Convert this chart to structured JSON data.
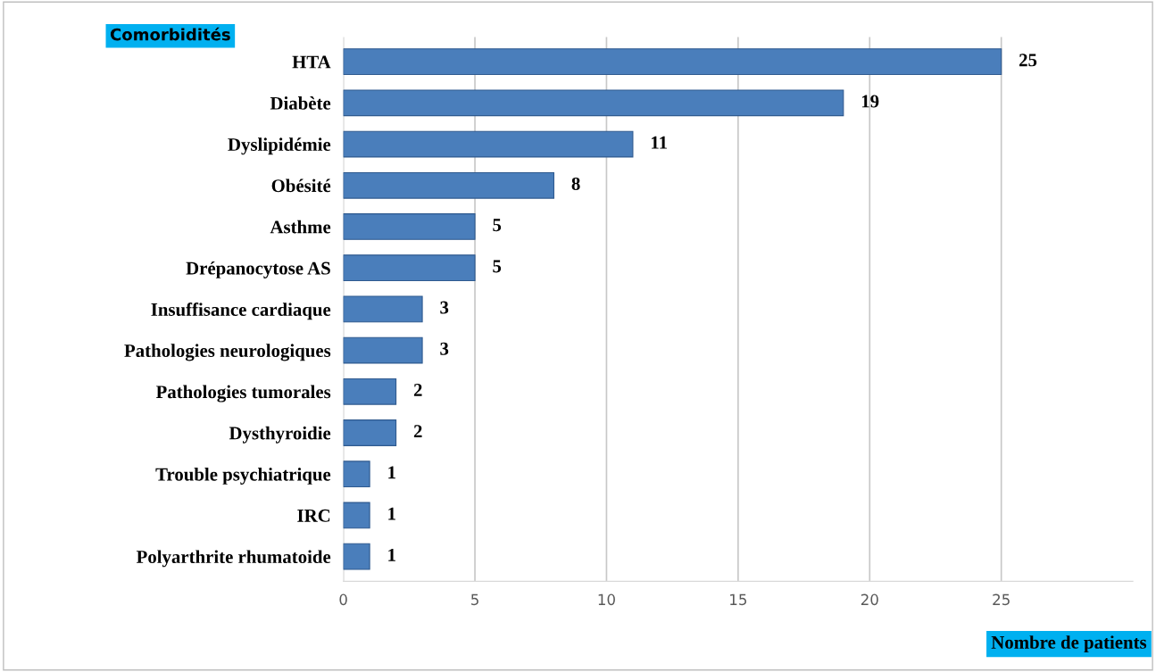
{
  "chart_data": {
    "type": "bar",
    "orientation": "horizontal",
    "ylabel": "Comorbidités",
    "xlabel": "Nombre de patients",
    "categories": [
      "HTA",
      "Diabète",
      "Dyslipidémie",
      "Obésité",
      "Asthme",
      "Drépanocytose AS",
      "Insuffisance cardiaque",
      "Pathologies neurologiques",
      "Pathologies tumorales",
      "Dysthyroidie",
      "Trouble psychiatrique",
      "IRC",
      "Polyarthrite rhumatoide"
    ],
    "values": [
      25,
      19,
      11,
      8,
      5,
      5,
      3,
      3,
      2,
      2,
      1,
      1,
      1
    ],
    "color": "#4a7ebb",
    "xlim": [
      0,
      30
    ],
    "xticks": [
      0,
      5,
      10,
      15,
      20,
      25
    ],
    "grid": "x",
    "data_labels": true
  }
}
